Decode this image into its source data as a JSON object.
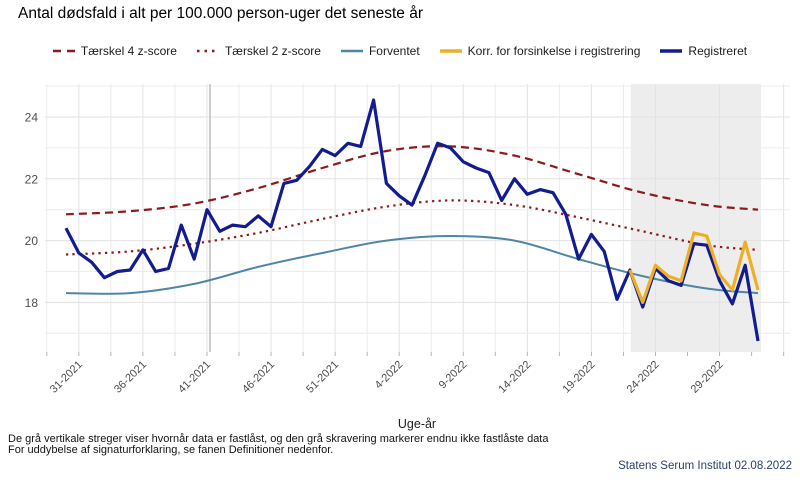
{
  "chart_data": {
    "type": "line",
    "title": "Antal dødsfald i alt per 100.000 person-uger det seneste år",
    "xlabel": "Uge-år",
    "ylabel": "",
    "ylim": [
      16.4,
      25.1
    ],
    "yticks": [
      18,
      20,
      22,
      24
    ],
    "grid": "on",
    "legend_position": "top",
    "x_tick_labels": [
      "31-2021",
      "36-2021",
      "41-2021",
      "46-2021",
      "51-2021",
      "4-2022",
      "9-2022",
      "14-2022",
      "19-2022",
      "24-2022",
      "29-2022"
    ],
    "weeks": [
      "30-2021",
      "31-2021",
      "32-2021",
      "33-2021",
      "34-2021",
      "35-2021",
      "36-2021",
      "37-2021",
      "38-2021",
      "39-2021",
      "40-2021",
      "41-2021",
      "42-2021",
      "43-2021",
      "44-2021",
      "45-2021",
      "46-2021",
      "47-2021",
      "48-2021",
      "49-2021",
      "50-2021",
      "51-2021",
      "52-2021",
      "1-2022",
      "2-2022",
      "3-2022",
      "4-2022",
      "5-2022",
      "6-2022",
      "7-2022",
      "8-2022",
      "9-2022",
      "10-2022",
      "11-2022",
      "12-2022",
      "13-2022",
      "14-2022",
      "15-2022",
      "16-2022",
      "17-2022",
      "18-2022",
      "19-2022",
      "20-2022",
      "21-2022",
      "22-2022",
      "23-2022",
      "24-2022",
      "25-2022",
      "26-2022",
      "27-2022",
      "28-2022",
      "29-2022",
      "30-2022",
      "31-2022",
      "32-2022"
    ],
    "series": [
      {
        "name": "Tærskel 4 z-score",
        "style": "dashed",
        "color": "#8C1A1A",
        "width": 2.2,
        "sample_indices": [
          0,
          5,
          10,
          15,
          20,
          25,
          30,
          35,
          40,
          45,
          50,
          54
        ],
        "values": [
          20.85,
          20.95,
          21.2,
          21.7,
          22.35,
          22.9,
          23.05,
          22.75,
          22.15,
          21.55,
          21.15,
          21.0
        ]
      },
      {
        "name": "Tærskel 2 z-score",
        "style": "dotted",
        "color": "#8C1A1A",
        "width": 2.2,
        "sample_indices": [
          0,
          5,
          10,
          15,
          20,
          25,
          30,
          35,
          40,
          45,
          50,
          54
        ],
        "values": [
          19.55,
          19.65,
          19.9,
          20.25,
          20.7,
          21.1,
          21.3,
          21.15,
          20.75,
          20.3,
          19.85,
          19.7
        ]
      },
      {
        "name": "Forventet",
        "style": "solid",
        "color": "#4E86A8",
        "width": 2,
        "sample_indices": [
          0,
          5,
          10,
          15,
          20,
          25,
          30,
          35,
          40,
          45,
          50,
          54
        ],
        "values": [
          18.3,
          18.3,
          18.6,
          19.15,
          19.6,
          20.0,
          20.15,
          20.0,
          19.4,
          18.85,
          18.45,
          18.3
        ]
      },
      {
        "name": "Registreret",
        "style": "solid",
        "color": "#121B8F",
        "width": 3.2,
        "start_week": "30-2021",
        "values": [
          20.4,
          19.6,
          19.3,
          18.8,
          19.0,
          19.05,
          19.7,
          19.0,
          19.1,
          20.5,
          19.4,
          21.0,
          20.3,
          20.5,
          20.45,
          20.8,
          20.45,
          21.85,
          21.95,
          22.4,
          22.95,
          22.75,
          23.15,
          23.05,
          24.55,
          21.85,
          21.45,
          21.15,
          22.1,
          23.15,
          23.0,
          22.55,
          22.35,
          22.2,
          21.3,
          22.0,
          21.5,
          21.65,
          21.55,
          20.85,
          19.4,
          20.2,
          19.65,
          18.1,
          19.05,
          17.85,
          19.1,
          18.7,
          18.55,
          19.9,
          19.85,
          18.7,
          17.95,
          19.2,
          16.75
        ]
      },
      {
        "name": "Korr. for forsinkelse i registrering",
        "style": "solid",
        "color": "#EFAF25",
        "width": 3.2,
        "start_week": "22-2022",
        "values": [
          19.05,
          18.0,
          19.2,
          18.85,
          18.7,
          20.25,
          20.15,
          18.9,
          18.4,
          19.95,
          18.4
        ]
      }
    ],
    "locked_line": {
      "week": "41-2021",
      "color": "#CCCCCC"
    },
    "shaded_region": {
      "from_week": "22-2022",
      "to_week": "32-2022",
      "color": "#EDEDED"
    },
    "grid_major_color": "#E2E2E2",
    "grid_minor_color": "#ECECEC",
    "tick_color": "#B5B5B5",
    "axis_text_color": "#4D4D4D"
  },
  "footnotes": [
    "De grå vertikale streger viser hvornår data er fastlåst, og den grå skravering markerer endnu ikke fastlåste data",
    "For uddybelse af signaturforklaring, se fanen Definitioner nedenfor."
  ],
  "attribution": "Statens Serum Institut  02.08.2022"
}
